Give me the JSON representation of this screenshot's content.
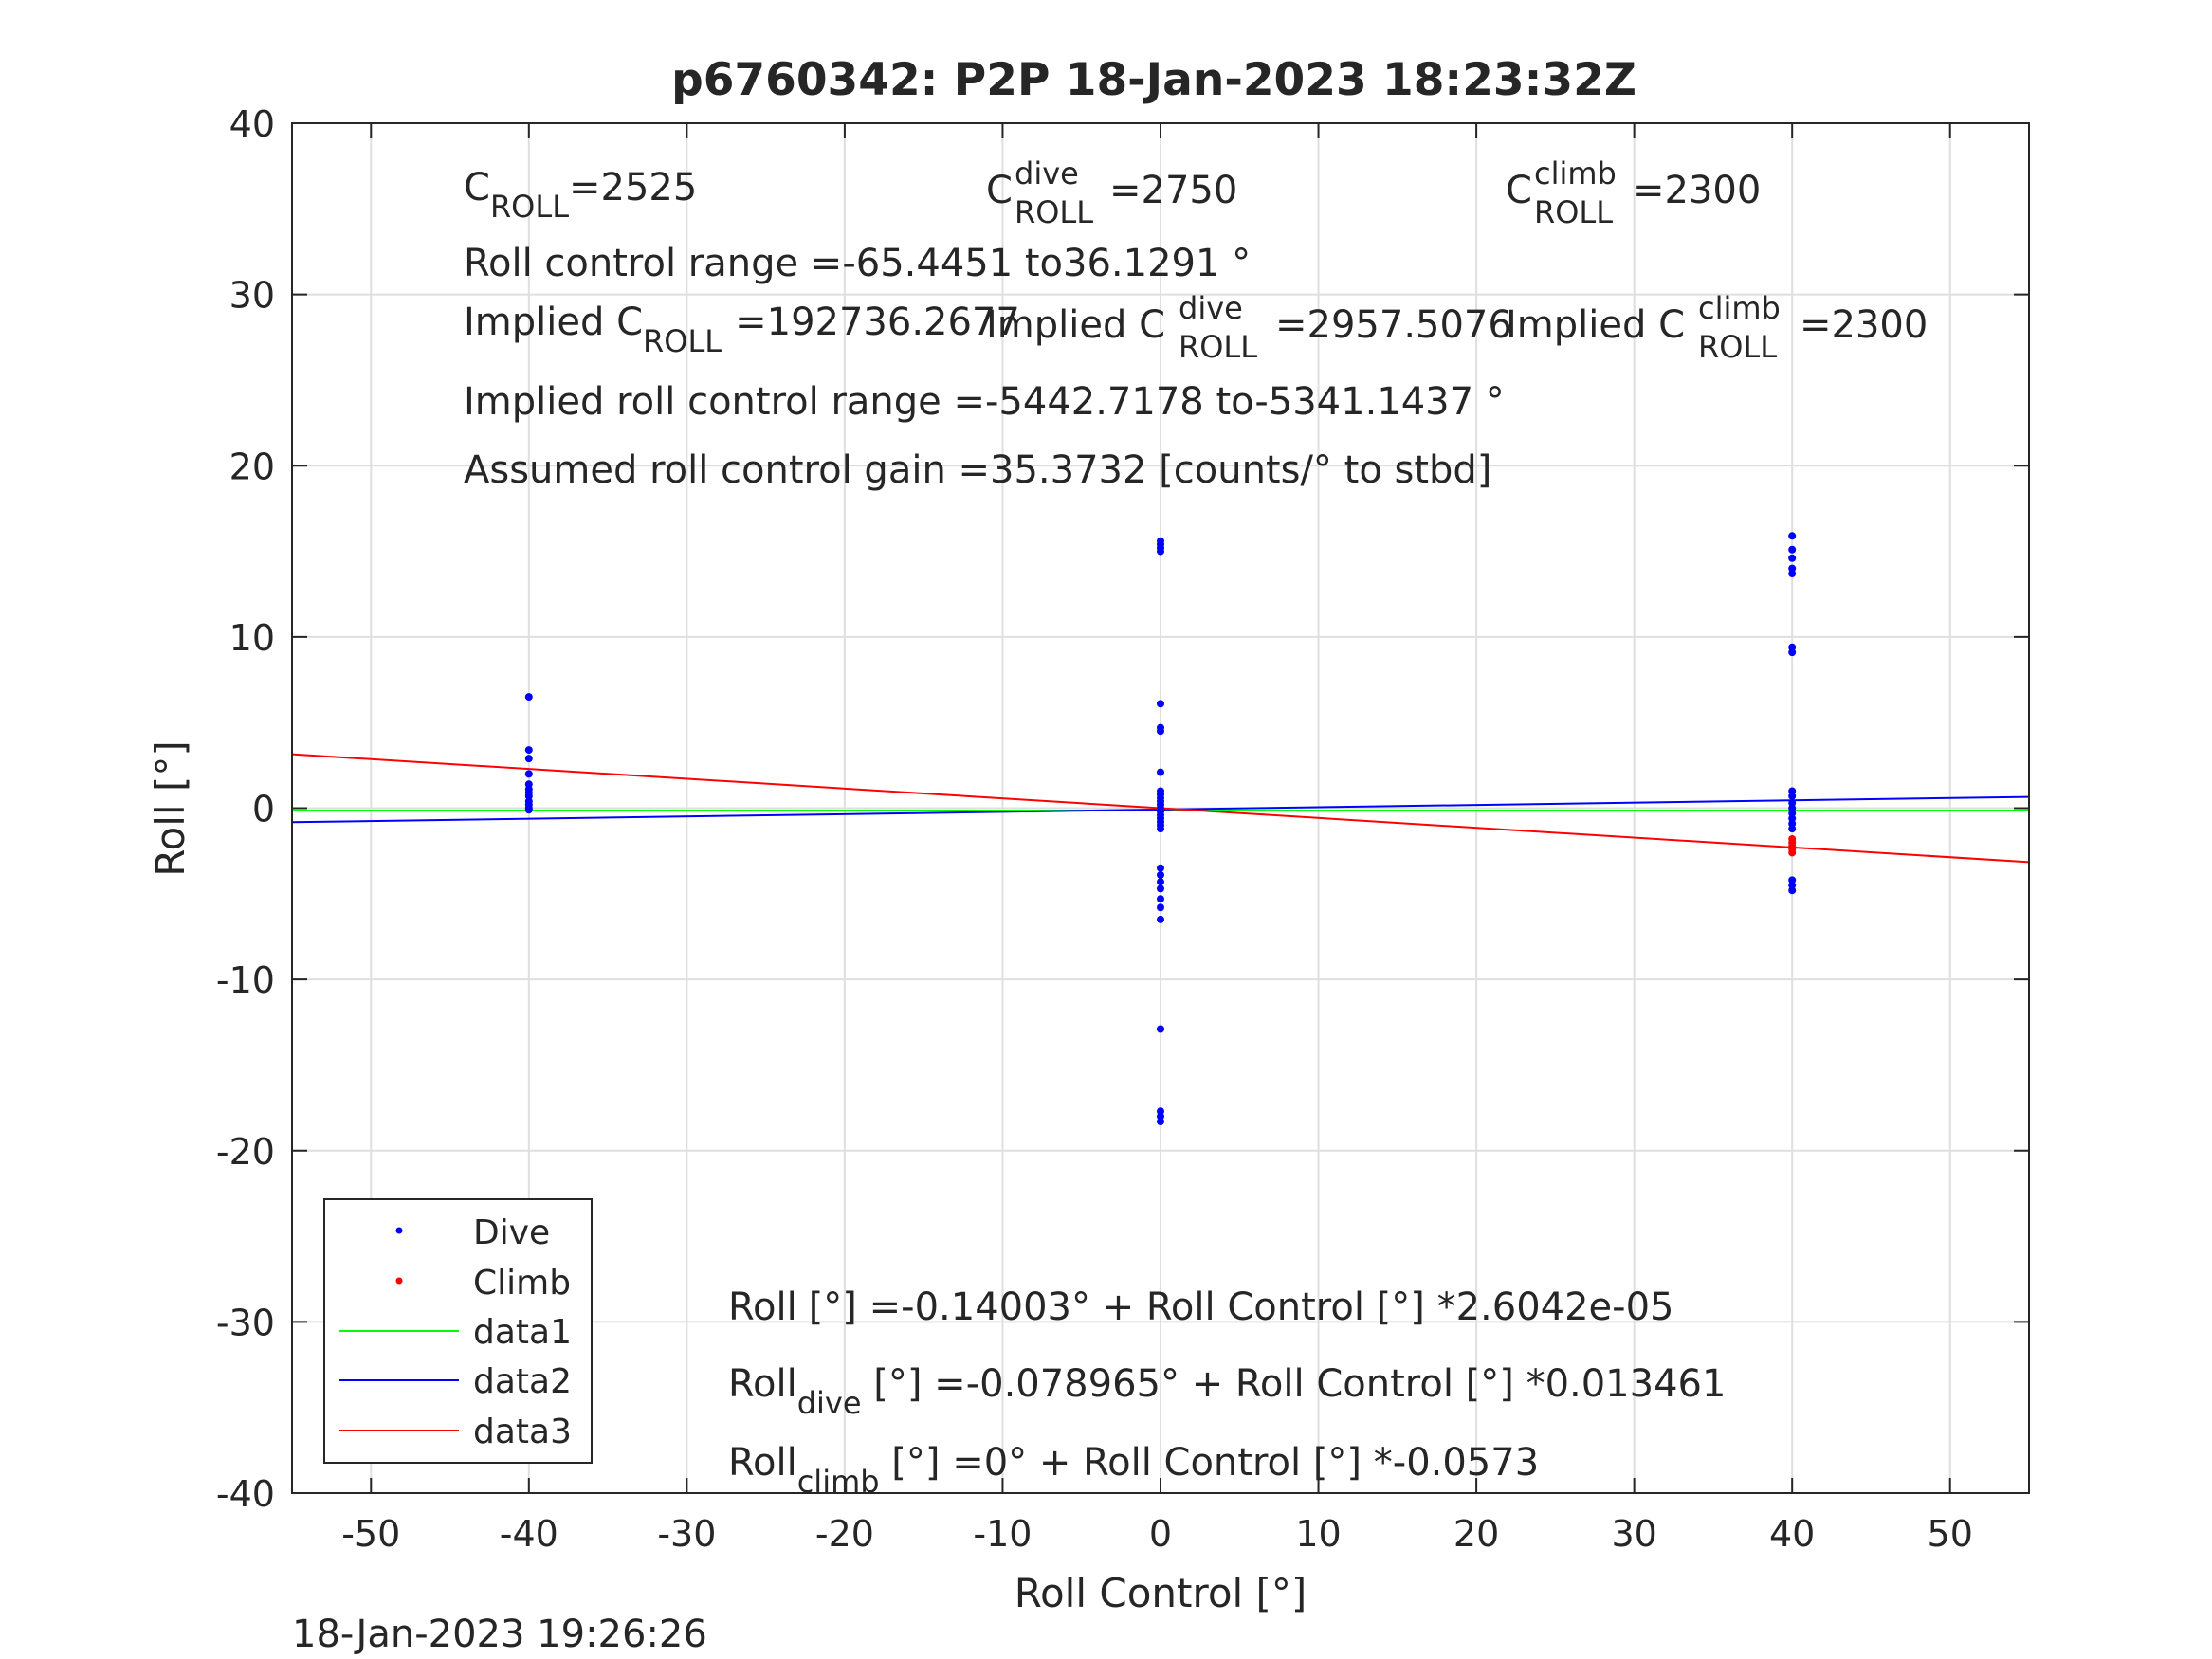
{
  "chart_data": {
    "type": "scatter",
    "title": "p6760342: P2P 18-Jan-2023 18:23:32Z",
    "xlabel": "Roll Control [°]",
    "ylabel": "Roll [°]",
    "xlim": [
      -55,
      55
    ],
    "ylim": [
      -40,
      40
    ],
    "xticks": [
      -50,
      -40,
      -30,
      -20,
      -10,
      0,
      10,
      20,
      30,
      40,
      50
    ],
    "yticks": [
      -40,
      -30,
      -20,
      -10,
      0,
      10,
      20,
      30,
      40
    ],
    "xtick_labels": [
      "-50",
      "-40",
      "-30",
      "-20",
      "-10",
      "0",
      "10",
      "20",
      "30",
      "40",
      "50"
    ],
    "ytick_labels": [
      "-40",
      "-30",
      "-20",
      "-10",
      "0",
      "10",
      "20",
      "30",
      "40"
    ],
    "grid": true,
    "legend_position": "bottom-left",
    "series": [
      {
        "name": "Dive",
        "kind": "points",
        "color": "#0000ff",
        "points": [
          [
            -40,
            6.5
          ],
          [
            -40,
            3.4
          ],
          [
            -40,
            2.9
          ],
          [
            -40,
            2.0
          ],
          [
            -40,
            1.4
          ],
          [
            -40,
            1.1
          ],
          [
            -40,
            0.9
          ],
          [
            -40,
            0.7
          ],
          [
            -40,
            0.4
          ],
          [
            -40,
            0.2
          ],
          [
            -40,
            0.0
          ],
          [
            -40,
            -0.1
          ],
          [
            0,
            15.6
          ],
          [
            0,
            15.4
          ],
          [
            0,
            15.2
          ],
          [
            0,
            15.0
          ],
          [
            0,
            6.1
          ],
          [
            0,
            4.7
          ],
          [
            0,
            4.5
          ],
          [
            0,
            2.1
          ],
          [
            0,
            1.0
          ],
          [
            0,
            0.8
          ],
          [
            0,
            0.6
          ],
          [
            0,
            0.4
          ],
          [
            0,
            0.2
          ],
          [
            0,
            0.0
          ],
          [
            0,
            -0.2
          ],
          [
            0,
            -0.4
          ],
          [
            0,
            -0.6
          ],
          [
            0,
            -0.8
          ],
          [
            0,
            -1.0
          ],
          [
            0,
            -1.2
          ],
          [
            0,
            -3.5
          ],
          [
            0,
            -3.9
          ],
          [
            0,
            -4.3
          ],
          [
            0,
            -4.7
          ],
          [
            0,
            -5.3
          ],
          [
            0,
            -5.8
          ],
          [
            0,
            -6.5
          ],
          [
            0,
            -12.9
          ],
          [
            0,
            -17.7
          ],
          [
            0,
            -18.0
          ],
          [
            0,
            -18.3
          ],
          [
            40,
            15.9
          ],
          [
            40,
            15.1
          ],
          [
            40,
            14.6
          ],
          [
            40,
            14.0
          ],
          [
            40,
            13.7
          ],
          [
            40,
            9.4
          ],
          [
            40,
            9.1
          ],
          [
            40,
            1.0
          ],
          [
            40,
            0.7
          ],
          [
            40,
            0.3
          ],
          [
            40,
            0.0
          ],
          [
            40,
            -0.3
          ],
          [
            40,
            -0.6
          ],
          [
            40,
            -0.9
          ],
          [
            40,
            -1.2
          ],
          [
            40,
            -4.2
          ],
          [
            40,
            -4.5
          ],
          [
            40,
            -4.8
          ]
        ]
      },
      {
        "name": "Climb",
        "kind": "points",
        "color": "#ff0000",
        "points": [
          [
            40,
            -1.8
          ],
          [
            40,
            -2.0
          ],
          [
            40,
            -2.2
          ],
          [
            40,
            -2.4
          ],
          [
            40,
            -2.6
          ]
        ]
      },
      {
        "name": "data1",
        "kind": "line",
        "color": "#00ff00",
        "x": [
          -55,
          55
        ],
        "y": [
          -0.14,
          -0.14
        ]
      },
      {
        "name": "data2",
        "kind": "line",
        "color": "#0000ff",
        "x": [
          -55,
          55
        ],
        "y": [
          -0.82,
          0.66
        ]
      },
      {
        "name": "data3",
        "kind": "line",
        "color": "#ff0000",
        "x": [
          -55,
          55
        ],
        "y": [
          3.15,
          -3.15
        ]
      }
    ]
  },
  "annotations": {
    "c_roll": {
      "base": "C",
      "sub": "ROLL",
      "value": "=2525"
    },
    "c_roll_dive": {
      "base": "C",
      "sup": "dive",
      "sub": "ROLL",
      "value": "=2750"
    },
    "c_roll_climb": {
      "base": "C",
      "sup": "climb",
      "sub": "ROLL",
      "value": "=2300"
    },
    "roll_control_range": "Roll control range =-65.4451 to36.1291 °",
    "implied_c_roll": {
      "prefix": "Implied C",
      "sub": "ROLL",
      "value": "=192736.2677"
    },
    "implied_c_roll_dive": {
      "prefix": "Implied C",
      "sup": "dive",
      "sub": "ROLL",
      "value": "=2957.5076"
    },
    "implied_c_roll_climb": {
      "prefix": "Implied C",
      "sup": "climb",
      "sub": "ROLL",
      "value": "=2300"
    },
    "implied_range": "Implied roll control range =-5442.7178 to-5341.1437 °",
    "assumed_gain": "Assumed roll control gain =35.3732 [counts/° to stbd]",
    "fit_all": {
      "prefix": "Roll",
      "rest": "[°] =-0.14003° + Roll Control [°] *2.6042e-05"
    },
    "fit_dive": {
      "prefix": "Roll",
      "sub": "dive",
      "rest": " [°] =-0.078965° + Roll Control [°] *0.013461"
    },
    "fit_climb": {
      "prefix": "Roll",
      "sub": "climb",
      "rest": " [°] =0° + Roll Control [°] *-0.0573"
    }
  },
  "footer": {
    "timestamp": "18-Jan-2023 19:26:26"
  }
}
